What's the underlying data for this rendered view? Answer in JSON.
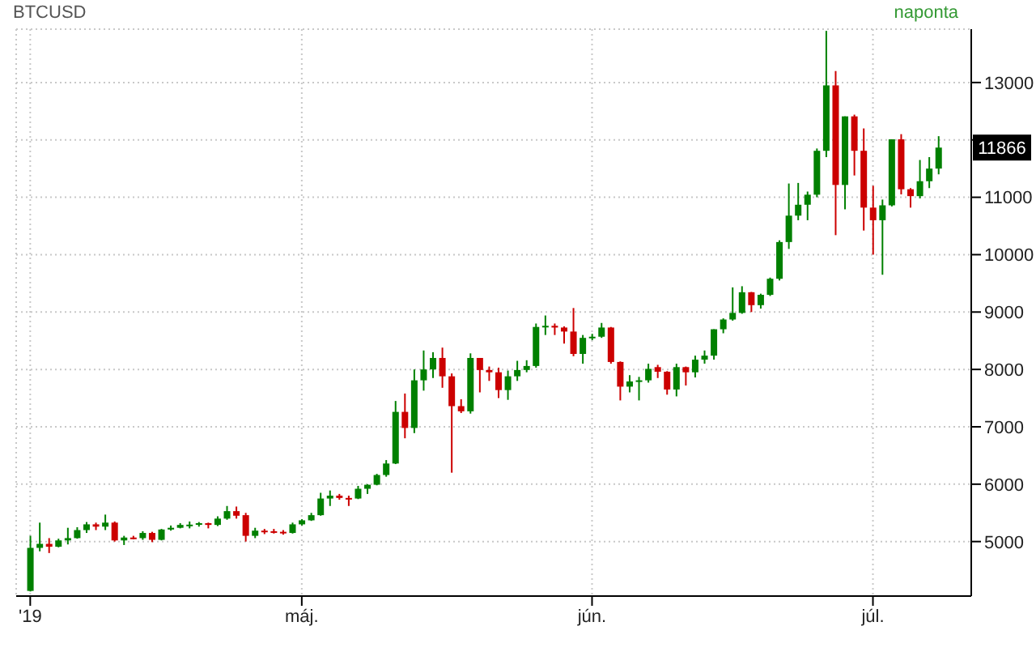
{
  "chart_data": {
    "type": "candlestick",
    "annotations": [
      "BTCUSD",
      "naponta",
      "11866"
    ],
    "categories": [
      "'19",
      null,
      null,
      null,
      null,
      null,
      null,
      null,
      null,
      null,
      null,
      null,
      null,
      null,
      null,
      null,
      null,
      null,
      null,
      null,
      null,
      null,
      null,
      null,
      null,
      null,
      null,
      null,
      null,
      "máj.",
      null,
      null,
      null,
      null,
      null,
      null,
      null,
      null,
      null,
      null,
      null,
      null,
      null,
      null,
      null,
      null,
      null,
      null,
      null,
      null,
      null,
      null,
      null,
      null,
      null,
      null,
      null,
      null,
      null,
      null,
      "jún.",
      null,
      null,
      null,
      null,
      null,
      null,
      null,
      null,
      null,
      null,
      null,
      null,
      null,
      null,
      null,
      null,
      null,
      null,
      null,
      null,
      null,
      null,
      null,
      null,
      null,
      null,
      null,
      null,
      null,
      "júl.",
      null,
      null,
      null,
      null,
      null,
      null,
      null
    ],
    "ohlc": [
      [
        4140,
        5100,
        4130,
        4890
      ],
      [
        4890,
        5330,
        4830,
        4960
      ],
      [
        4960,
        5060,
        4800,
        4910
      ],
      [
        4910,
        5050,
        4900,
        5020
      ],
      [
        5020,
        5240,
        4950,
        5060
      ],
      [
        5060,
        5250,
        5050,
        5200
      ],
      [
        5200,
        5340,
        5150,
        5300
      ],
      [
        5300,
        5330,
        5200,
        5260
      ],
      [
        5260,
        5470,
        5200,
        5330
      ],
      [
        5330,
        5350,
        5000,
        5020
      ],
      [
        5020,
        5100,
        4940,
        5070
      ],
      [
        5070,
        5100,
        5040,
        5060
      ],
      [
        5060,
        5180,
        5030,
        5150
      ],
      [
        5150,
        5170,
        4990,
        5030
      ],
      [
        5030,
        5220,
        5020,
        5210
      ],
      [
        5210,
        5280,
        5190,
        5240
      ],
      [
        5240,
        5320,
        5230,
        5290
      ],
      [
        5290,
        5350,
        5230,
        5295
      ],
      [
        5295,
        5340,
        5260,
        5320
      ],
      [
        5320,
        5330,
        5230,
        5290
      ],
      [
        5290,
        5440,
        5270,
        5400
      ],
      [
        5400,
        5620,
        5380,
        5530
      ],
      [
        5530,
        5610,
        5400,
        5450
      ],
      [
        5460,
        5500,
        5000,
        5100
      ],
      [
        5100,
        5240,
        5060,
        5190
      ],
      [
        5190,
        5220,
        5130,
        5180
      ],
      [
        5180,
        5220,
        5140,
        5170
      ],
      [
        5170,
        5200,
        5120,
        5150
      ],
      [
        5150,
        5330,
        5140,
        5300
      ],
      [
        5300,
        5390,
        5280,
        5370
      ],
      [
        5370,
        5500,
        5360,
        5460
      ],
      [
        5460,
        5850,
        5450,
        5750
      ],
      [
        5750,
        5890,
        5620,
        5800
      ],
      [
        5800,
        5830,
        5730,
        5760
      ],
      [
        5760,
        5800,
        5620,
        5750
      ],
      [
        5750,
        5970,
        5740,
        5920
      ],
      [
        5920,
        6000,
        5830,
        5990
      ],
      [
        5990,
        6180,
        5980,
        6160
      ],
      [
        6160,
        6420,
        6130,
        6360
      ],
      [
        6360,
        7450,
        6350,
        7260
      ],
      [
        7260,
        7580,
        6800,
        6980
      ],
      [
        6980,
        8000,
        6890,
        7810
      ],
      [
        7810,
        8330,
        7630,
        8000
      ],
      [
        8000,
        8300,
        7850,
        8200
      ],
      [
        8200,
        8380,
        7680,
        7880
      ],
      [
        7880,
        7930,
        6200,
        7360
      ],
      [
        7360,
        7480,
        7240,
        7270
      ],
      [
        7270,
        8280,
        7230,
        8200
      ],
      [
        8200,
        8200,
        7600,
        7990
      ],
      [
        7990,
        8050,
        7800,
        7950
      ],
      [
        7950,
        8030,
        7500,
        7640
      ],
      [
        7640,
        7980,
        7470,
        7880
      ],
      [
        7880,
        8150,
        7800,
        7990
      ],
      [
        7990,
        8160,
        7950,
        8060
      ],
      [
        8060,
        8800,
        8030,
        8740
      ],
      [
        8740,
        8940,
        8600,
        8760
      ],
      [
        8760,
        8800,
        8600,
        8730
      ],
      [
        8730,
        8750,
        8450,
        8660
      ],
      [
        8660,
        9070,
        8230,
        8270
      ],
      [
        8270,
        8600,
        8100,
        8550
      ],
      [
        8550,
        8620,
        8510,
        8570
      ],
      [
        8570,
        8810,
        8550,
        8730
      ],
      [
        8730,
        8740,
        8100,
        8130
      ],
      [
        8130,
        8140,
        7460,
        7700
      ],
      [
        7700,
        7900,
        7600,
        7790
      ],
      [
        7790,
        7870,
        7460,
        7810
      ],
      [
        7810,
        8100,
        7770,
        8010
      ],
      [
        8040,
        8080,
        7850,
        7960
      ],
      [
        7960,
        7970,
        7560,
        7650
      ],
      [
        7650,
        8100,
        7530,
        8040
      ],
      [
        8040,
        8050,
        7720,
        7950
      ],
      [
        7950,
        8240,
        7860,
        8170
      ],
      [
        8170,
        8330,
        8100,
        8240
      ],
      [
        8240,
        8700,
        8170,
        8700
      ],
      [
        8700,
        8890,
        8630,
        8870
      ],
      [
        8870,
        9430,
        8850,
        8985
      ],
      [
        8985,
        9450,
        8970,
        9345
      ],
      [
        9345,
        9350,
        9000,
        9120
      ],
      [
        9120,
        9320,
        9060,
        9300
      ],
      [
        9300,
        9600,
        9280,
        9580
      ],
      [
        9580,
        10250,
        9550,
        10220
      ],
      [
        10220,
        11240,
        10100,
        10680
      ],
      [
        10680,
        11250,
        10600,
        10870
      ],
      [
        10870,
        11100,
        10600,
        11045
      ],
      [
        11045,
        11850,
        11000,
        11810
      ],
      [
        11810,
        13900,
        11700,
        12950
      ],
      [
        12950,
        13200,
        10340,
        11215
      ],
      [
        11215,
        12410,
        10790,
        12410
      ],
      [
        12410,
        12440,
        11380,
        11810
      ],
      [
        11810,
        12200,
        10420,
        10820
      ],
      [
        10820,
        11200,
        10000,
        10600
      ],
      [
        10600,
        10960,
        9650,
        10860
      ],
      [
        10860,
        12010,
        10840,
        12010
      ],
      [
        12010,
        12100,
        11050,
        11140
      ],
      [
        11140,
        11160,
        10820,
        11020
      ],
      [
        11020,
        11650,
        10980,
        11280
      ],
      [
        11280,
        11700,
        11160,
        11500
      ],
      [
        11500,
        12065,
        11400,
        11866
      ]
    ],
    "colors": [
      "#008000",
      "#008000",
      "#cc0000",
      "#008000",
      "#008000",
      "#008000",
      "#008000",
      "#cc0000",
      "#008000",
      "#cc0000",
      "#008000",
      "#cc0000",
      "#008000",
      "#cc0000",
      "#008000",
      "#008000",
      "#008000",
      "#008000",
      "#008000",
      "#cc0000",
      "#008000",
      "#008000",
      "#cc0000",
      "#cc0000",
      "#008000",
      "#cc0000",
      "#cc0000",
      "#cc0000",
      "#008000",
      "#008000",
      "#008000",
      "#008000",
      "#008000",
      "#cc0000",
      "#cc0000",
      "#008000",
      "#008000",
      "#008000",
      "#008000",
      "#008000",
      "#cc0000",
      "#008000",
      "#008000",
      "#008000",
      "#cc0000",
      "#cc0000",
      "#cc0000",
      "#008000",
      "#cc0000",
      "#cc0000",
      "#cc0000",
      "#008000",
      "#008000",
      "#008000",
      "#008000",
      "#008000",
      "#cc0000",
      "#cc0000",
      "#cc0000",
      "#008000",
      "#008000",
      "#008000",
      "#cc0000",
      "#cc0000",
      "#008000",
      "#008000",
      "#008000",
      "#cc0000",
      "#cc0000",
      "#008000",
      "#cc0000",
      "#008000",
      "#008000",
      "#008000",
      "#008000",
      "#008000",
      "#008000",
      "#cc0000",
      "#008000",
      "#008000",
      "#008000",
      "#008000",
      "#008000",
      "#008000",
      "#008000",
      "#008000",
      "#cc0000",
      "#008000",
      "#cc0000",
      "#cc0000",
      "#cc0000",
      "#008000",
      "#008000",
      "#cc0000",
      "#cc0000",
      "#008000",
      "#008000",
      "#008000"
    ],
    "ylim": [
      4050,
      13930
    ],
    "yticks": [
      5000,
      6000,
      7000,
      8000,
      9000,
      10000,
      11000,
      {
        "value": 12000,
        "label": null
      },
      13000
    ],
    "grid": true
  }
}
